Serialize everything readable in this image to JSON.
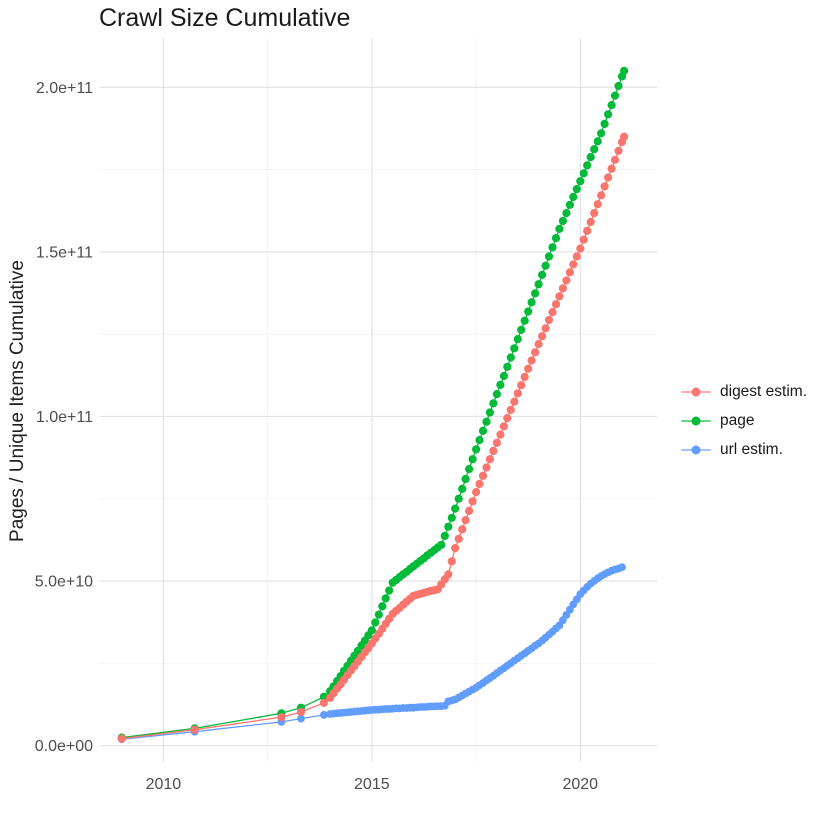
{
  "title": "Crawl Size Cumulative",
  "y_axis_title": "Pages / Unique Items Cumulative",
  "legend": {
    "items": [
      {
        "label": "digest estim.",
        "color": "#F8766D"
      },
      {
        "label": "page",
        "color": "#00BA38"
      },
      {
        "label": "url estim.",
        "color": "#619CFF"
      }
    ]
  },
  "colors": {
    "background": "#FFFFFF",
    "grid_major": "#E3E3E3",
    "grid_minor": "#F0F0F0",
    "tick_label": "#4D4D4D",
    "title_text": "#1A1A1A"
  },
  "chart_data": {
    "type": "scatter",
    "title": "Crawl Size Cumulative",
    "xlabel": "",
    "ylabel": "Pages / Unique Items Cumulative",
    "value_unit": "billions of pages / unique items (1e9)",
    "grid": "major and minor gridlines, light gray on white",
    "legend_position": "right-middle",
    "x_domain": [
      2008.48,
      2021.84
    ],
    "y_domain_billions": [
      -5,
      215
    ],
    "x_major_ticks": [
      {
        "v": 2010,
        "label": "2010"
      },
      {
        "v": 2015,
        "label": "2015"
      },
      {
        "v": 2020,
        "label": "2020"
      }
    ],
    "x_minor_ticks": [
      2012.5,
      2017.5
    ],
    "y_major_ticks": [
      {
        "v": 0,
        "label": "0.0e+00"
      },
      {
        "v": 50,
        "label": "5.0e+10"
      },
      {
        "v": 100,
        "label": "1.0e+11"
      },
      {
        "v": 150,
        "label": "1.5e+11"
      },
      {
        "v": 200,
        "label": "2.0e+11"
      }
    ],
    "y_minor_ticks": [
      25,
      75,
      125,
      175
    ],
    "series": [
      {
        "name": "digest estim.",
        "color": "#F8766D",
        "dot_radius": 4.1,
        "points": [
          [
            2009.0,
            2.1
          ],
          [
            2010.75,
            4.8
          ],
          [
            2012.83,
            8.6
          ],
          [
            2013.3,
            10.2
          ],
          [
            2013.85,
            13.0
          ],
          [
            2014.0,
            14.5
          ],
          [
            2014.083,
            15.9
          ],
          [
            2014.167,
            17.3
          ],
          [
            2014.25,
            18.6
          ],
          [
            2014.333,
            20.0
          ],
          [
            2014.417,
            21.4
          ],
          [
            2014.5,
            22.8
          ],
          [
            2014.583,
            24.1
          ],
          [
            2014.667,
            25.5
          ],
          [
            2014.75,
            26.9
          ],
          [
            2014.833,
            28.3
          ],
          [
            2014.917,
            29.6
          ],
          [
            2015.0,
            31.0
          ],
          [
            2015.083,
            32.5
          ],
          [
            2015.167,
            34.0
          ],
          [
            2015.25,
            35.5
          ],
          [
            2015.333,
            37.0
          ],
          [
            2015.417,
            38.5
          ],
          [
            2015.5,
            40.0
          ],
          [
            2015.583,
            40.9
          ],
          [
            2015.667,
            41.8
          ],
          [
            2015.75,
            42.8
          ],
          [
            2015.833,
            43.7
          ],
          [
            2015.917,
            44.6
          ],
          [
            2016.0,
            45.5
          ],
          [
            2016.083,
            45.8
          ],
          [
            2016.167,
            46.1
          ],
          [
            2016.25,
            46.4
          ],
          [
            2016.333,
            46.7
          ],
          [
            2016.417,
            47.0
          ],
          [
            2016.5,
            47.2
          ],
          [
            2016.583,
            47.5
          ],
          [
            2016.667,
            49.0
          ],
          [
            2016.75,
            50.5
          ],
          [
            2016.833,
            52.0
          ],
          [
            2016.917,
            56.0
          ],
          [
            2017.0,
            60.0
          ],
          [
            2017.083,
            62.8
          ],
          [
            2017.167,
            65.7
          ],
          [
            2017.25,
            68.5
          ],
          [
            2017.333,
            71.3
          ],
          [
            2017.417,
            74.2
          ],
          [
            2017.5,
            77.0
          ],
          [
            2017.583,
            79.5
          ],
          [
            2017.667,
            82.0
          ],
          [
            2017.75,
            84.5
          ],
          [
            2017.833,
            87.0
          ],
          [
            2017.917,
            89.5
          ],
          [
            2018.0,
            92.0
          ],
          [
            2018.083,
            94.5
          ],
          [
            2018.167,
            97.0
          ],
          [
            2018.25,
            99.5
          ],
          [
            2018.333,
            102.0
          ],
          [
            2018.417,
            104.5
          ],
          [
            2018.5,
            107.0
          ],
          [
            2018.583,
            109.5
          ],
          [
            2018.667,
            112.0
          ],
          [
            2018.75,
            114.5
          ],
          [
            2018.833,
            117.0
          ],
          [
            2018.917,
            119.5
          ],
          [
            2019.0,
            122.0
          ],
          [
            2019.083,
            124.4
          ],
          [
            2019.167,
            126.8
          ],
          [
            2019.25,
            129.3
          ],
          [
            2019.333,
            131.7
          ],
          [
            2019.417,
            134.1
          ],
          [
            2019.5,
            136.5
          ],
          [
            2019.583,
            138.9
          ],
          [
            2019.667,
            141.3
          ],
          [
            2019.75,
            143.8
          ],
          [
            2019.833,
            146.2
          ],
          [
            2019.917,
            148.6
          ],
          [
            2020.0,
            151.0
          ],
          [
            2020.083,
            153.7
          ],
          [
            2020.167,
            156.4
          ],
          [
            2020.25,
            159.1
          ],
          [
            2020.333,
            161.8
          ],
          [
            2020.417,
            164.5
          ],
          [
            2020.5,
            167.2
          ],
          [
            2020.583,
            169.9
          ],
          [
            2020.667,
            172.6
          ],
          [
            2020.75,
            175.3
          ],
          [
            2020.833,
            178.0
          ],
          [
            2020.917,
            180.7
          ],
          [
            2021.0,
            183.4
          ],
          [
            2021.05,
            185.0
          ]
        ]
      },
      {
        "name": "page",
        "color": "#00BA38",
        "dot_radius": 4.1,
        "points": [
          [
            2009.0,
            2.4
          ],
          [
            2010.75,
            5.2
          ],
          [
            2012.83,
            9.8
          ],
          [
            2013.3,
            11.5
          ],
          [
            2013.85,
            14.8
          ],
          [
            2014.0,
            16.5
          ],
          [
            2014.083,
            18.0
          ],
          [
            2014.167,
            19.6
          ],
          [
            2014.25,
            21.1
          ],
          [
            2014.333,
            22.7
          ],
          [
            2014.417,
            24.2
          ],
          [
            2014.5,
            25.8
          ],
          [
            2014.583,
            27.3
          ],
          [
            2014.667,
            28.8
          ],
          [
            2014.75,
            30.4
          ],
          [
            2014.833,
            31.9
          ],
          [
            2014.917,
            33.5
          ],
          [
            2015.0,
            35.0
          ],
          [
            2015.083,
            37.4
          ],
          [
            2015.167,
            39.8
          ],
          [
            2015.25,
            42.3
          ],
          [
            2015.333,
            44.7
          ],
          [
            2015.417,
            47.1
          ],
          [
            2015.5,
            49.5
          ],
          [
            2015.583,
            50.3
          ],
          [
            2015.667,
            51.2
          ],
          [
            2015.75,
            52.0
          ],
          [
            2015.833,
            52.8
          ],
          [
            2015.917,
            53.7
          ],
          [
            2016.0,
            54.5
          ],
          [
            2016.083,
            55.3
          ],
          [
            2016.167,
            56.1
          ],
          [
            2016.25,
            56.9
          ],
          [
            2016.333,
            57.8
          ],
          [
            2016.417,
            58.6
          ],
          [
            2016.5,
            59.4
          ],
          [
            2016.583,
            60.2
          ],
          [
            2016.667,
            61.0
          ],
          [
            2016.75,
            63.7
          ],
          [
            2016.833,
            66.5
          ],
          [
            2016.917,
            69.2
          ],
          [
            2017.0,
            72.0
          ],
          [
            2017.083,
            75.0
          ],
          [
            2017.167,
            78.0
          ],
          [
            2017.25,
            81.0
          ],
          [
            2017.333,
            84.0
          ],
          [
            2017.417,
            87.0
          ],
          [
            2017.5,
            90.0
          ],
          [
            2017.583,
            92.8
          ],
          [
            2017.667,
            95.6
          ],
          [
            2017.75,
            98.4
          ],
          [
            2017.833,
            101.2
          ],
          [
            2017.917,
            104.0
          ],
          [
            2018.0,
            106.8
          ],
          [
            2018.083,
            109.6
          ],
          [
            2018.167,
            112.3
          ],
          [
            2018.25,
            115.1
          ],
          [
            2018.333,
            117.9
          ],
          [
            2018.417,
            120.7
          ],
          [
            2018.5,
            123.5
          ],
          [
            2018.583,
            126.3
          ],
          [
            2018.667,
            129.1
          ],
          [
            2018.75,
            131.9
          ],
          [
            2018.833,
            134.7
          ],
          [
            2018.917,
            137.4
          ],
          [
            2019.0,
            140.2
          ],
          [
            2019.083,
            143.0
          ],
          [
            2019.167,
            145.8
          ],
          [
            2019.25,
            148.6
          ],
          [
            2019.333,
            151.4
          ],
          [
            2019.417,
            154.2
          ],
          [
            2019.5,
            157.0
          ],
          [
            2019.583,
            159.4
          ],
          [
            2019.667,
            161.8
          ],
          [
            2019.75,
            164.3
          ],
          [
            2019.833,
            166.7
          ],
          [
            2019.917,
            169.1
          ],
          [
            2020.0,
            171.5
          ],
          [
            2020.083,
            173.9
          ],
          [
            2020.167,
            176.3
          ],
          [
            2020.25,
            178.8
          ],
          [
            2020.333,
            181.2
          ],
          [
            2020.417,
            183.6
          ],
          [
            2020.5,
            186.0
          ],
          [
            2020.583,
            188.9
          ],
          [
            2020.667,
            191.8
          ],
          [
            2020.75,
            194.6
          ],
          [
            2020.833,
            197.5
          ],
          [
            2020.917,
            200.4
          ],
          [
            2021.0,
            203.3
          ],
          [
            2021.05,
            205.0
          ]
        ]
      },
      {
        "name": "url estim.",
        "color": "#619CFF",
        "dot_radius": 3.9,
        "points": [
          [
            2009.0,
            1.9
          ],
          [
            2010.75,
            4.2
          ],
          [
            2012.83,
            7.2
          ],
          [
            2013.3,
            8.2
          ],
          [
            2013.85,
            9.3
          ],
          [
            2014.0,
            9.6
          ],
          [
            2014.083,
            9.7
          ],
          [
            2014.167,
            9.8
          ],
          [
            2014.25,
            9.9
          ],
          [
            2014.333,
            10.0
          ],
          [
            2014.417,
            10.1
          ],
          [
            2014.5,
            10.2
          ],
          [
            2014.583,
            10.3
          ],
          [
            2014.667,
            10.4
          ],
          [
            2014.75,
            10.5
          ],
          [
            2014.833,
            10.6
          ],
          [
            2014.917,
            10.7
          ],
          [
            2015.0,
            10.8
          ],
          [
            2015.083,
            10.9
          ],
          [
            2015.167,
            10.9
          ],
          [
            2015.25,
            11.0
          ],
          [
            2015.333,
            11.1
          ],
          [
            2015.417,
            11.1
          ],
          [
            2015.5,
            11.2
          ],
          [
            2015.583,
            11.3
          ],
          [
            2015.667,
            11.3
          ],
          [
            2015.75,
            11.4
          ],
          [
            2015.833,
            11.4
          ],
          [
            2015.917,
            11.5
          ],
          [
            2016.0,
            11.5
          ],
          [
            2016.083,
            11.6
          ],
          [
            2016.167,
            11.7
          ],
          [
            2016.25,
            11.7
          ],
          [
            2016.333,
            11.8
          ],
          [
            2016.417,
            11.9
          ],
          [
            2016.5,
            11.9
          ],
          [
            2016.583,
            12.0
          ],
          [
            2016.667,
            12.0
          ],
          [
            2016.75,
            12.1
          ],
          [
            2016.833,
            13.4
          ],
          [
            2016.917,
            13.7
          ],
          [
            2017.0,
            14.0
          ],
          [
            2017.083,
            14.6
          ],
          [
            2017.167,
            15.2
          ],
          [
            2017.25,
            15.8
          ],
          [
            2017.333,
            16.4
          ],
          [
            2017.417,
            17.0
          ],
          [
            2017.5,
            17.6
          ],
          [
            2017.583,
            18.3
          ],
          [
            2017.667,
            19.0
          ],
          [
            2017.75,
            19.8
          ],
          [
            2017.833,
            20.5
          ],
          [
            2017.917,
            21.2
          ],
          [
            2018.0,
            22.0
          ],
          [
            2018.083,
            22.8
          ],
          [
            2018.167,
            23.5
          ],
          [
            2018.25,
            24.3
          ],
          [
            2018.333,
            25.0
          ],
          [
            2018.417,
            25.8
          ],
          [
            2018.5,
            26.5
          ],
          [
            2018.583,
            27.3
          ],
          [
            2018.667,
            28.0
          ],
          [
            2018.75,
            28.8
          ],
          [
            2018.833,
            29.5
          ],
          [
            2018.917,
            30.3
          ],
          [
            2019.0,
            31.0
          ],
          [
            2019.083,
            31.9
          ],
          [
            2019.167,
            32.8
          ],
          [
            2019.25,
            33.7
          ],
          [
            2019.333,
            34.6
          ],
          [
            2019.417,
            35.6
          ],
          [
            2019.5,
            36.5
          ],
          [
            2019.583,
            38.1
          ],
          [
            2019.667,
            39.7
          ],
          [
            2019.75,
            41.3
          ],
          [
            2019.833,
            42.9
          ],
          [
            2019.917,
            44.4
          ],
          [
            2020.0,
            46.0
          ],
          [
            2020.083,
            47.1
          ],
          [
            2020.167,
            48.2
          ],
          [
            2020.25,
            49.2
          ],
          [
            2020.333,
            50.0
          ],
          [
            2020.417,
            50.8
          ],
          [
            2020.5,
            51.5
          ],
          [
            2020.583,
            52.1
          ],
          [
            2020.667,
            52.6
          ],
          [
            2020.75,
            53.1
          ],
          [
            2020.833,
            53.5
          ],
          [
            2020.917,
            53.8
          ],
          [
            2021.0,
            54.2
          ]
        ]
      }
    ]
  }
}
